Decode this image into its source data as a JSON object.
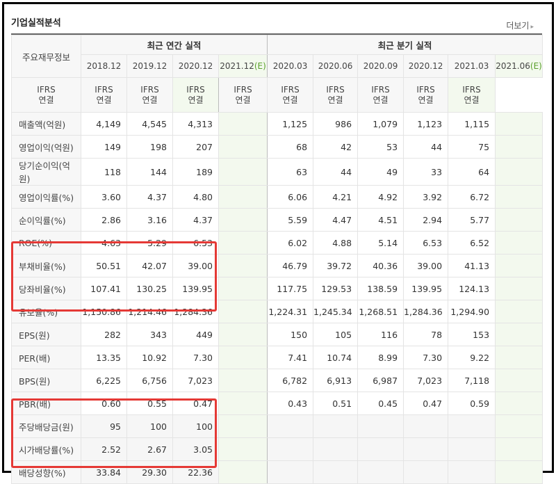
{
  "header": {
    "title": "기업실적분석",
    "more_label": "더보기",
    "more_icon": "chevron-right-icon"
  },
  "table": {
    "row_header_label": "주요재무정보",
    "annual_group_label": "최근 연간 실적",
    "quarter_group_label": "최근 분기 실적",
    "annual_periods": [
      "2018.12",
      "2019.12",
      "2020.12",
      "2021.12"
    ],
    "annual_estimate_suffix": "(E)",
    "quarter_periods": [
      "2020.03",
      "2020.06",
      "2020.09",
      "2020.12",
      "2021.03",
      "2021.06"
    ],
    "quarter_estimate_suffix": "(E)",
    "ifrs_top": "IFRS",
    "ifrs_bottom": "연결",
    "rows": [
      {
        "label": "매출액(억원)",
        "annual": [
          "4,149",
          "4,545",
          "4,313",
          ""
        ],
        "quarter": [
          "1,125",
          "986",
          "1,079",
          "1,123",
          "1,115",
          ""
        ]
      },
      {
        "label": "영업이익(억원)",
        "annual": [
          "149",
          "198",
          "207",
          ""
        ],
        "quarter": [
          "68",
          "42",
          "53",
          "44",
          "75",
          ""
        ]
      },
      {
        "label": "당기순이익(억원)",
        "annual": [
          "118",
          "144",
          "189",
          ""
        ],
        "quarter": [
          "63",
          "44",
          "49",
          "33",
          "64",
          ""
        ]
      },
      {
        "label": "영업이익률(%)",
        "annual": [
          "3.60",
          "4.37",
          "4.80",
          ""
        ],
        "quarter": [
          "6.06",
          "4.21",
          "4.92",
          "3.92",
          "6.72",
          ""
        ]
      },
      {
        "label": "순이익률(%)",
        "annual": [
          "2.86",
          "3.16",
          "4.37",
          ""
        ],
        "quarter": [
          "5.59",
          "4.47",
          "4.51",
          "2.94",
          "5.77",
          ""
        ]
      },
      {
        "label": "ROE(%)",
        "annual": [
          "4.63",
          "5.29",
          "6.53",
          ""
        ],
        "quarter": [
          "6.02",
          "4.88",
          "5.14",
          "6.53",
          "6.52",
          ""
        ]
      },
      {
        "label": "부채비율(%)",
        "annual": [
          "50.51",
          "42.07",
          "39.00",
          ""
        ],
        "quarter": [
          "46.79",
          "39.72",
          "40.36",
          "39.00",
          "41.13",
          ""
        ]
      },
      {
        "label": "당좌비율(%)",
        "annual": [
          "107.41",
          "130.25",
          "139.95",
          ""
        ],
        "quarter": [
          "117.75",
          "129.53",
          "138.59",
          "139.95",
          "124.13",
          ""
        ]
      },
      {
        "label": "유보율(%)",
        "annual": [
          "1,150.86",
          "1,214.46",
          "1,284.36",
          ""
        ],
        "quarter": [
          "1,224.31",
          "1,245.34",
          "1,268.51",
          "1,284.36",
          "1,294.90",
          ""
        ]
      },
      {
        "label": "EPS(원)",
        "annual": [
          "282",
          "343",
          "449",
          ""
        ],
        "quarter": [
          "150",
          "105",
          "116",
          "78",
          "153",
          ""
        ]
      },
      {
        "label": "PER(배)",
        "annual": [
          "13.35",
          "10.92",
          "7.30",
          ""
        ],
        "quarter": [
          "7.41",
          "10.74",
          "8.99",
          "7.30",
          "9.22",
          ""
        ]
      },
      {
        "label": "BPS(원)",
        "annual": [
          "6,225",
          "6,756",
          "7,023",
          ""
        ],
        "quarter": [
          "6,782",
          "6,913",
          "6,987",
          "7,023",
          "7,118",
          ""
        ]
      },
      {
        "label": "PBR(배)",
        "annual": [
          "0.60",
          "0.55",
          "0.47",
          ""
        ],
        "quarter": [
          "0.43",
          "0.51",
          "0.45",
          "0.47",
          "0.59",
          ""
        ]
      },
      {
        "label": "주당배당금(원)",
        "annual": [
          "95",
          "100",
          "100",
          ""
        ],
        "quarter": [
          "",
          "",
          "",
          "",
          "",
          ""
        ]
      },
      {
        "label": "시가배당률(%)",
        "annual": [
          "2.52",
          "2.67",
          "3.05",
          ""
        ],
        "quarter": [
          "",
          "",
          "",
          "",
          "",
          ""
        ]
      },
      {
        "label": "배당성향(%)",
        "annual": [
          "33.84",
          "29.30",
          "22.36",
          ""
        ],
        "quarter": [
          "",
          "",
          "",
          "",
          "",
          ""
        ]
      }
    ]
  },
  "colors": {
    "highlight_box": "#e53935",
    "ifrs_text": "#e36b15",
    "estimate_bg": "#f3f9ee",
    "estimate_tag": "#5aa02c"
  }
}
